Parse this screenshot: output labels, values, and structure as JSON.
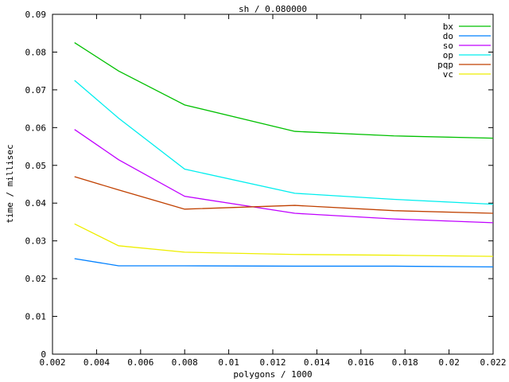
{
  "chart_data": {
    "type": "line",
    "title": "sh / 0.080000",
    "xlabel": "polygons / 1000",
    "ylabel": "time / millisec",
    "xlim": [
      0.002,
      0.022
    ],
    "ylim": [
      0,
      0.09
    ],
    "xticks": [
      0.002,
      0.004,
      0.006,
      0.008,
      0.01,
      0.012,
      0.014,
      0.016,
      0.018,
      0.02,
      0.022
    ],
    "xtick_labels": [
      "0.002",
      "0.004",
      "0.006",
      "0.008",
      "0.01",
      "0.012",
      "0.014",
      "0.016",
      "0.018",
      "0.02",
      "0.022"
    ],
    "yticks": [
      0,
      0.01,
      0.02,
      0.03,
      0.04,
      0.05,
      0.06,
      0.07,
      0.08,
      0.09
    ],
    "ytick_labels": [
      "0",
      "0.01",
      "0.02",
      "0.03",
      "0.04",
      "0.05",
      "0.06",
      "0.07",
      "0.08",
      "0.09"
    ],
    "grid": false,
    "legend_position": "top-right-inside",
    "axis_color": "#000000",
    "background_color": "#ffffff",
    "x": [
      0.003,
      0.005,
      0.008,
      0.013,
      0.0175,
      0.022
    ],
    "series": [
      {
        "name": "bx",
        "color": "#00c000",
        "values": [
          0.0825,
          0.075,
          0.066,
          0.059,
          0.0578,
          0.0572
        ]
      },
      {
        "name": "do",
        "color": "#0080ff",
        "values": [
          0.0253,
          0.0234,
          0.0234,
          0.0233,
          0.0233,
          0.0231
        ]
      },
      {
        "name": "so",
        "color": "#c000ff",
        "values": [
          0.0595,
          0.0515,
          0.0418,
          0.0373,
          0.0358,
          0.0348
        ]
      },
      {
        "name": "op",
        "color": "#00eeee",
        "values": [
          0.0725,
          0.0625,
          0.049,
          0.0426,
          0.041,
          0.0397
        ]
      },
      {
        "name": "pqp",
        "color": "#c04000",
        "values": [
          0.047,
          0.0435,
          0.0384,
          0.0394,
          0.038,
          0.0373
        ]
      },
      {
        "name": "vc",
        "color": "#eeee00",
        "values": [
          0.0345,
          0.0287,
          0.027,
          0.0264,
          0.0262,
          0.0259
        ]
      }
    ]
  }
}
